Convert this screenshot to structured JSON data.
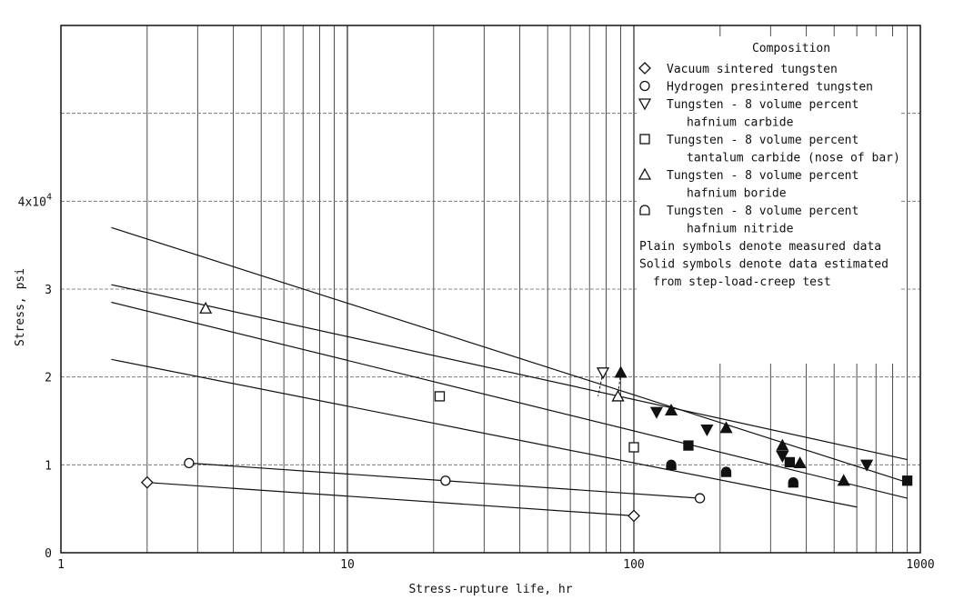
{
  "chart_data": {
    "type": "scatter",
    "x_scale": "log",
    "xlim": [
      1,
      1000
    ],
    "ylim": [
      0,
      60000
    ],
    "xlabel": "Stress-rupture life, hr",
    "ylabel": "Stress, psi",
    "x_ticks": [
      "1",
      "10",
      "100",
      "1000"
    ],
    "y_ticks": [
      {
        "value": 0,
        "label": "0"
      },
      {
        "value": 10000,
        "label": "1"
      },
      {
        "value": 20000,
        "label": "2"
      },
      {
        "value": 30000,
        "label": "3"
      },
      {
        "value": 40000,
        "label": "4x10",
        "sup": "4"
      }
    ],
    "grid": true,
    "legend": {
      "placement": "top-right",
      "title": "Composition",
      "entries": [
        {
          "marker": "diamond",
          "lines": [
            "Vacuum sintered tungsten"
          ]
        },
        {
          "marker": "circle",
          "lines": [
            "Hydrogen presintered tungsten"
          ]
        },
        {
          "marker": "triangle-down",
          "lines": [
            "Tungsten - 8 volume percent",
            "hafnium carbide"
          ]
        },
        {
          "marker": "square",
          "lines": [
            "Tungsten - 8 volume percent",
            "tantalum carbide (nose of bar)"
          ]
        },
        {
          "marker": "triangle-up",
          "lines": [
            "Tungsten - 8 volume percent",
            "hafnium boride"
          ]
        },
        {
          "marker": "arch",
          "lines": [
            "Tungsten - 8 volume percent",
            "hafnium nitride"
          ]
        }
      ],
      "notes": [
        "Plain symbols denote measured data",
        "Solid symbols denote data estimated",
        "from step-load-creep test"
      ]
    },
    "series": [
      {
        "marker": "diamond",
        "points": [
          {
            "x": 2,
            "y": 8000,
            "filled": false
          },
          {
            "x": 100,
            "y": 4200,
            "filled": false
          }
        ]
      },
      {
        "marker": "circle",
        "points": [
          {
            "x": 2.8,
            "y": 10200,
            "filled": false
          },
          {
            "x": 22,
            "y": 8200,
            "filled": false
          },
          {
            "x": 170,
            "y": 6200,
            "filled": false
          }
        ]
      },
      {
        "marker": "triangle-down",
        "points": [
          {
            "x": 78,
            "y": 20500,
            "filled": false
          },
          {
            "x": 120,
            "y": 16000,
            "filled": true
          },
          {
            "x": 180,
            "y": 14000,
            "filled": true
          },
          {
            "x": 330,
            "y": 11000,
            "filled": true
          },
          {
            "x": 650,
            "y": 10000,
            "filled": true
          }
        ]
      },
      {
        "marker": "square",
        "points": [
          {
            "x": 21,
            "y": 17800,
            "filled": false
          },
          {
            "x": 100,
            "y": 12000,
            "filled": false
          },
          {
            "x": 155,
            "y": 12200,
            "filled": true
          },
          {
            "x": 350,
            "y": 10300,
            "filled": true
          },
          {
            "x": 900,
            "y": 8200,
            "filled": true
          }
        ]
      },
      {
        "marker": "triangle-up",
        "points": [
          {
            "x": 3.2,
            "y": 27800,
            "filled": false
          },
          {
            "x": 88,
            "y": 17800,
            "filled": false
          },
          {
            "x": 90,
            "y": 20500,
            "filled": true
          },
          {
            "x": 135,
            "y": 16200,
            "filled": true
          },
          {
            "x": 210,
            "y": 14200,
            "filled": true
          },
          {
            "x": 330,
            "y": 12200,
            "filled": true
          },
          {
            "x": 380,
            "y": 10200,
            "filled": true
          },
          {
            "x": 540,
            "y": 8200,
            "filled": true
          }
        ]
      },
      {
        "marker": "arch",
        "points": [
          {
            "x": 135,
            "y": 10000,
            "filled": true
          },
          {
            "x": 210,
            "y": 9200,
            "filled": true
          },
          {
            "x": 360,
            "y": 8000,
            "filled": true
          }
        ]
      }
    ],
    "fit_lines": [
      {
        "x": [
          2,
          100
        ],
        "y": [
          8000,
          4200
        ]
      },
      {
        "x": [
          2.8,
          170
        ],
        "y": [
          10200,
          6200
        ]
      },
      {
        "x": [
          1.5,
          600
        ],
        "y": [
          22000,
          5200
        ]
      },
      {
        "x": [
          1.5,
          900
        ],
        "y": [
          28500,
          6200
        ]
      },
      {
        "x": [
          1.5,
          900
        ],
        "y": [
          30500,
          10600
        ]
      },
      {
        "x": [
          1.5,
          900
        ],
        "y": [
          37000,
          8000
        ]
      }
    ],
    "dashed_links": [
      {
        "x": [
          78,
          75
        ],
        "y": [
          20500,
          17800
        ]
      },
      {
        "x": [
          90,
          88
        ],
        "y": [
          20500,
          18000
        ]
      }
    ]
  }
}
